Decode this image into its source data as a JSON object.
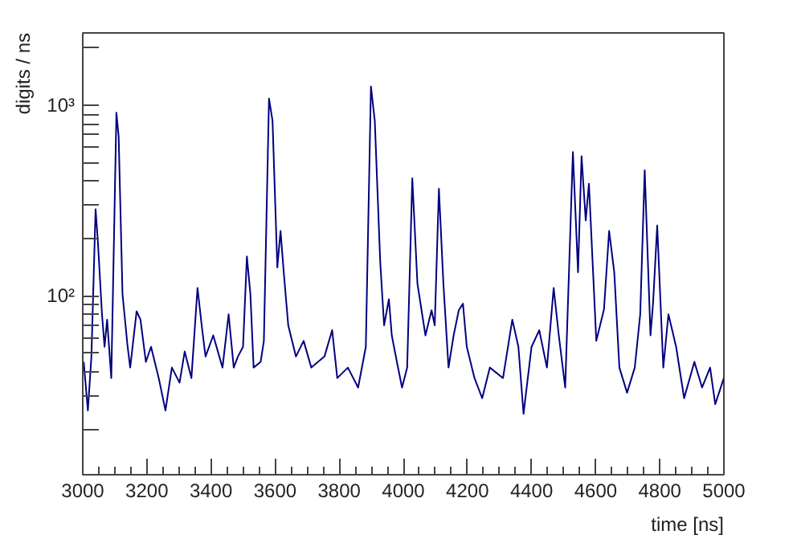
{
  "chart_data": {
    "type": "line",
    "xlabel": "time [ns]",
    "ylabel": "digits / ns",
    "log": "y",
    "grid": false,
    "marker": "none",
    "line_style": "solid",
    "xlim": [
      3000,
      5000
    ],
    "xticks": [
      3000,
      3200,
      3400,
      3600,
      3800,
      4000,
      4200,
      4400,
      4600,
      4800,
      5000
    ],
    "ylim": [
      11.5,
      2400
    ],
    "yticks": [
      {
        "value": 20,
        "label": null
      },
      {
        "value": 30,
        "label": null
      },
      {
        "value": 40,
        "label": null
      },
      {
        "value": 50,
        "label": null
      },
      {
        "value": 60,
        "label": null
      },
      {
        "value": 70,
        "label": null
      },
      {
        "value": 80,
        "label": null
      },
      {
        "value": 90,
        "label": null
      },
      {
        "value": 100,
        "label": "10²"
      },
      {
        "value": 200,
        "label": null
      },
      {
        "value": 300,
        "label": null
      },
      {
        "value": 400,
        "label": null
      },
      {
        "value": 500,
        "label": null
      },
      {
        "value": 600,
        "label": null
      },
      {
        "value": 700,
        "label": null
      },
      {
        "value": 800,
        "label": null
      },
      {
        "value": 900,
        "label": null
      },
      {
        "value": 1000,
        "label": "10³"
      },
      {
        "value": 2000,
        "label": null
      }
    ],
    "series": [
      {
        "color": "#000080",
        "x": [
          3003,
          3016,
          3027,
          3040,
          3047,
          3060,
          3068,
          3076,
          3089,
          3105,
          3112,
          3124,
          3140,
          3148,
          3168,
          3180,
          3197,
          3213,
          3237,
          3258,
          3278,
          3302,
          3318,
          3339,
          3358,
          3371,
          3383,
          3407,
          3436,
          3455,
          3471,
          3484,
          3500,
          3512,
          3523,
          3533,
          3555,
          3565,
          3581,
          3592,
          3607,
          3617,
          3627,
          3641,
          3665,
          3689,
          3713,
          3754,
          3778,
          3794,
          3827,
          3859,
          3883,
          3899,
          3911,
          3928,
          3940,
          3955,
          3964,
          3980,
          3996,
          4012,
          4028,
          4044,
          4069,
          4088,
          4098,
          4111,
          4125,
          4141,
          4157,
          4173,
          4186,
          4198,
          4222,
          4246,
          4270,
          4311,
          4340,
          4359,
          4375,
          4400,
          4424,
          4448,
          4469,
          4485,
          4505,
          4529,
          4545,
          4556,
          4569,
          4579,
          4602,
          4626,
          4642,
          4658,
          4674,
          4698,
          4722,
          4739,
          4753,
          4771,
          4779,
          4792,
          4811,
          4827,
          4851,
          4876,
          4908,
          4932,
          4957,
          4973,
          5000
        ],
        "values": [
          45,
          25,
          48,
          285,
          195,
          80,
          54,
          75,
          37,
          915,
          687,
          102,
          54,
          42,
          83,
          75,
          45,
          54,
          37,
          25,
          42,
          35,
          51,
          37,
          110,
          70,
          48,
          62,
          42,
          80,
          42,
          48,
          54,
          161,
          102,
          42,
          45,
          58,
          1086,
          830,
          141,
          219,
          133,
          70,
          48,
          58,
          42,
          48,
          66,
          37,
          42,
          33,
          54,
          1256,
          830,
          150,
          70,
          96,
          62,
          45,
          33,
          42,
          414,
          116,
          62,
          84,
          70,
          365,
          116,
          42,
          62,
          84,
          91,
          54,
          37,
          29,
          42,
          37,
          75,
          54,
          24,
          54,
          66,
          42,
          110,
          62,
          33,
          569,
          133,
          541,
          249,
          388,
          58,
          85,
          219,
          133,
          42,
          31,
          42,
          80,
          456,
          62,
          91,
          234,
          42,
          80,
          54,
          29,
          45,
          33,
          42,
          27,
          37
        ]
      }
    ]
  }
}
